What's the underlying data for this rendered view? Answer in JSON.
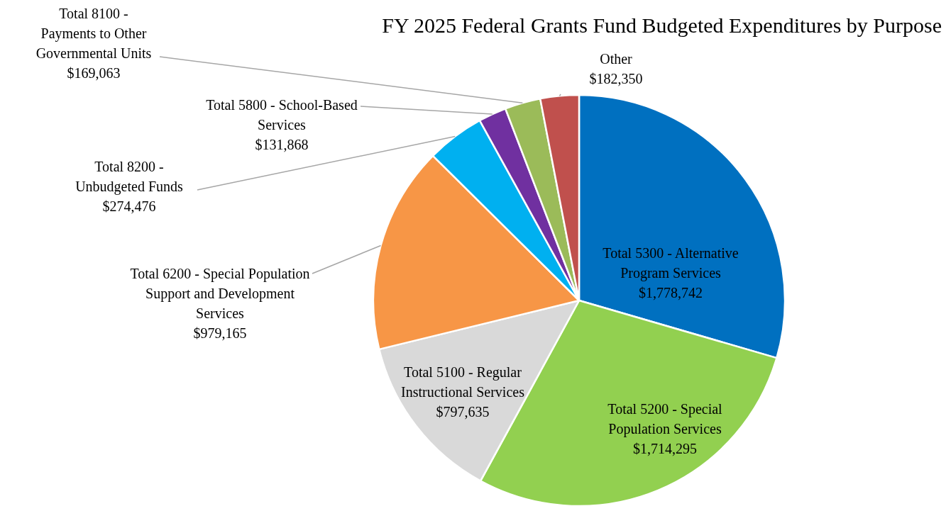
{
  "chart_data": {
    "type": "pie",
    "title": "FY 2025 Federal Grants Fund Budgeted Expenditures by Purpose",
    "categories": [
      "Total 5300 - Alternative Program Services",
      "Total 5200 - Special Population Services",
      "Total 5100 - Regular Instructional Services",
      "Total 6200 - Special Population Support and Development Services",
      "Total 8200 - Unbudgeted Funds",
      "Total 5800 - School-Based Services",
      "Total 8100 - Payments to Other Governmental Units",
      "Other"
    ],
    "values": [
      1778742,
      1714295,
      797635,
      979165,
      274476,
      131868,
      169063,
      182350
    ],
    "value_labels": [
      "$1,778,742",
      "$1,714,295",
      "$797,635",
      "$979,165",
      "$274,476",
      "$131,868",
      "$169,063",
      "$182,350"
    ],
    "colors": [
      "#0070c0",
      "#92d050",
      "#d9d9d9",
      "#f79646",
      "#00b0f0",
      "#7030a0",
      "#9bbb59",
      "#c0504d"
    ]
  }
}
